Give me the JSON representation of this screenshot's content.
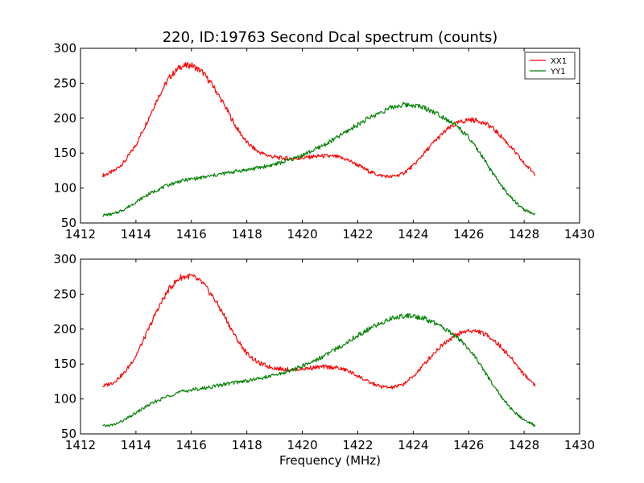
{
  "chart_data": {
    "type": "line",
    "title": "220, ID:19763 Second Dcal spectrum (counts)",
    "xlabel": "Frequency (MHz)",
    "xlim": [
      1412,
      1430
    ],
    "xticks": [
      "1412",
      "1414",
      "1416",
      "1418",
      "1420",
      "1422",
      "1424",
      "1426",
      "1428",
      "1430"
    ],
    "ylim": [
      50,
      300
    ],
    "yticks": [
      "50",
      "100",
      "150",
      "200",
      "250",
      "300"
    ],
    "grid": false,
    "legend_position": "top-right",
    "colors": {
      "XX1": "#ff0000",
      "YY1": "#008000"
    },
    "panels": [
      {
        "id": "top",
        "legend": [
          "XX1",
          "YY1"
        ],
        "series": [
          {
            "name": "XX1",
            "x": [
              1412.8,
              1413.2,
              1413.6,
              1414.0,
              1414.4,
              1414.8,
              1415.2,
              1415.6,
              1416.0,
              1416.4,
              1416.8,
              1417.2,
              1417.6,
              1418.0,
              1418.4,
              1418.8,
              1419.2,
              1419.6,
              1420.0,
              1420.4,
              1420.8,
              1421.2,
              1421.6,
              1422.0,
              1422.4,
              1422.8,
              1423.2,
              1423.6,
              1424.0,
              1424.4,
              1424.8,
              1425.2,
              1425.6,
              1426.0,
              1426.4,
              1426.8,
              1427.2,
              1427.6,
              1428.0,
              1428.4
            ],
            "y": [
              118,
              124,
              138,
              162,
              195,
              230,
              258,
              274,
              276,
              266,
              245,
              218,
              188,
              165,
              152,
              146,
              143,
              142,
              143,
              145,
              146,
              145,
              141,
              133,
              124,
              118,
              116,
              120,
              132,
              150,
              168,
              183,
              193,
              198,
              196,
              188,
              173,
              155,
              135,
              120
            ]
          },
          {
            "name": "YY1",
            "x": [
              1412.8,
              1413.2,
              1413.6,
              1414.0,
              1414.4,
              1414.8,
              1415.2,
              1415.6,
              1416.0,
              1416.4,
              1416.8,
              1417.2,
              1417.6,
              1418.0,
              1418.4,
              1418.8,
              1419.2,
              1419.6,
              1420.0,
              1420.4,
              1420.8,
              1421.2,
              1421.6,
              1422.0,
              1422.4,
              1422.8,
              1423.2,
              1423.6,
              1424.0,
              1424.4,
              1424.8,
              1425.2,
              1425.6,
              1426.0,
              1426.4,
              1426.8,
              1427.2,
              1427.6,
              1428.0,
              1428.4
            ],
            "y": [
              61,
              63,
              70,
              80,
              90,
              98,
              105,
              110,
              113,
              115,
              118,
              121,
              124,
              126,
              129,
              132,
              136,
              141,
              147,
              154,
              162,
              171,
              181,
              191,
              200,
              208,
              215,
              219,
              219,
              215,
              208,
              199,
              188,
              172,
              150,
              125,
              102,
              83,
              69,
              62
            ]
          }
        ]
      },
      {
        "id": "bottom",
        "legend": [],
        "series": [
          {
            "name": "XX1",
            "x": [
              1412.8,
              1413.2,
              1413.6,
              1414.0,
              1414.4,
              1414.8,
              1415.2,
              1415.6,
              1416.0,
              1416.4,
              1416.8,
              1417.2,
              1417.6,
              1418.0,
              1418.4,
              1418.8,
              1419.2,
              1419.6,
              1420.0,
              1420.4,
              1420.8,
              1421.2,
              1421.6,
              1422.0,
              1422.4,
              1422.8,
              1423.2,
              1423.6,
              1424.0,
              1424.4,
              1424.8,
              1425.2,
              1425.6,
              1426.0,
              1426.4,
              1426.8,
              1427.2,
              1427.6,
              1428.0,
              1428.4
            ],
            "y": [
              118,
              124,
              138,
              162,
              195,
              230,
              258,
              274,
              276,
              266,
              245,
              218,
              188,
              165,
              152,
              146,
              143,
              142,
              143,
              145,
              146,
              145,
              141,
              133,
              124,
              118,
              116,
              120,
              132,
              150,
              168,
              183,
              193,
              198,
              196,
              188,
              173,
              155,
              135,
              120
            ]
          },
          {
            "name": "YY1",
            "x": [
              1412.8,
              1413.2,
              1413.6,
              1414.0,
              1414.4,
              1414.8,
              1415.2,
              1415.6,
              1416.0,
              1416.4,
              1416.8,
              1417.2,
              1417.6,
              1418.0,
              1418.4,
              1418.8,
              1419.2,
              1419.6,
              1420.0,
              1420.4,
              1420.8,
              1421.2,
              1421.6,
              1422.0,
              1422.4,
              1422.8,
              1423.2,
              1423.6,
              1424.0,
              1424.4,
              1424.8,
              1425.2,
              1425.6,
              1426.0,
              1426.4,
              1426.8,
              1427.2,
              1427.6,
              1428.0,
              1428.4
            ],
            "y": [
              61,
              63,
              70,
              80,
              90,
              98,
              105,
              110,
              113,
              115,
              118,
              121,
              124,
              126,
              129,
              132,
              136,
              141,
              147,
              154,
              162,
              171,
              181,
              191,
              200,
              208,
              215,
              219,
              219,
              215,
              208,
              199,
              188,
              172,
              150,
              125,
              102,
              83,
              69,
              62
            ]
          }
        ]
      }
    ]
  }
}
